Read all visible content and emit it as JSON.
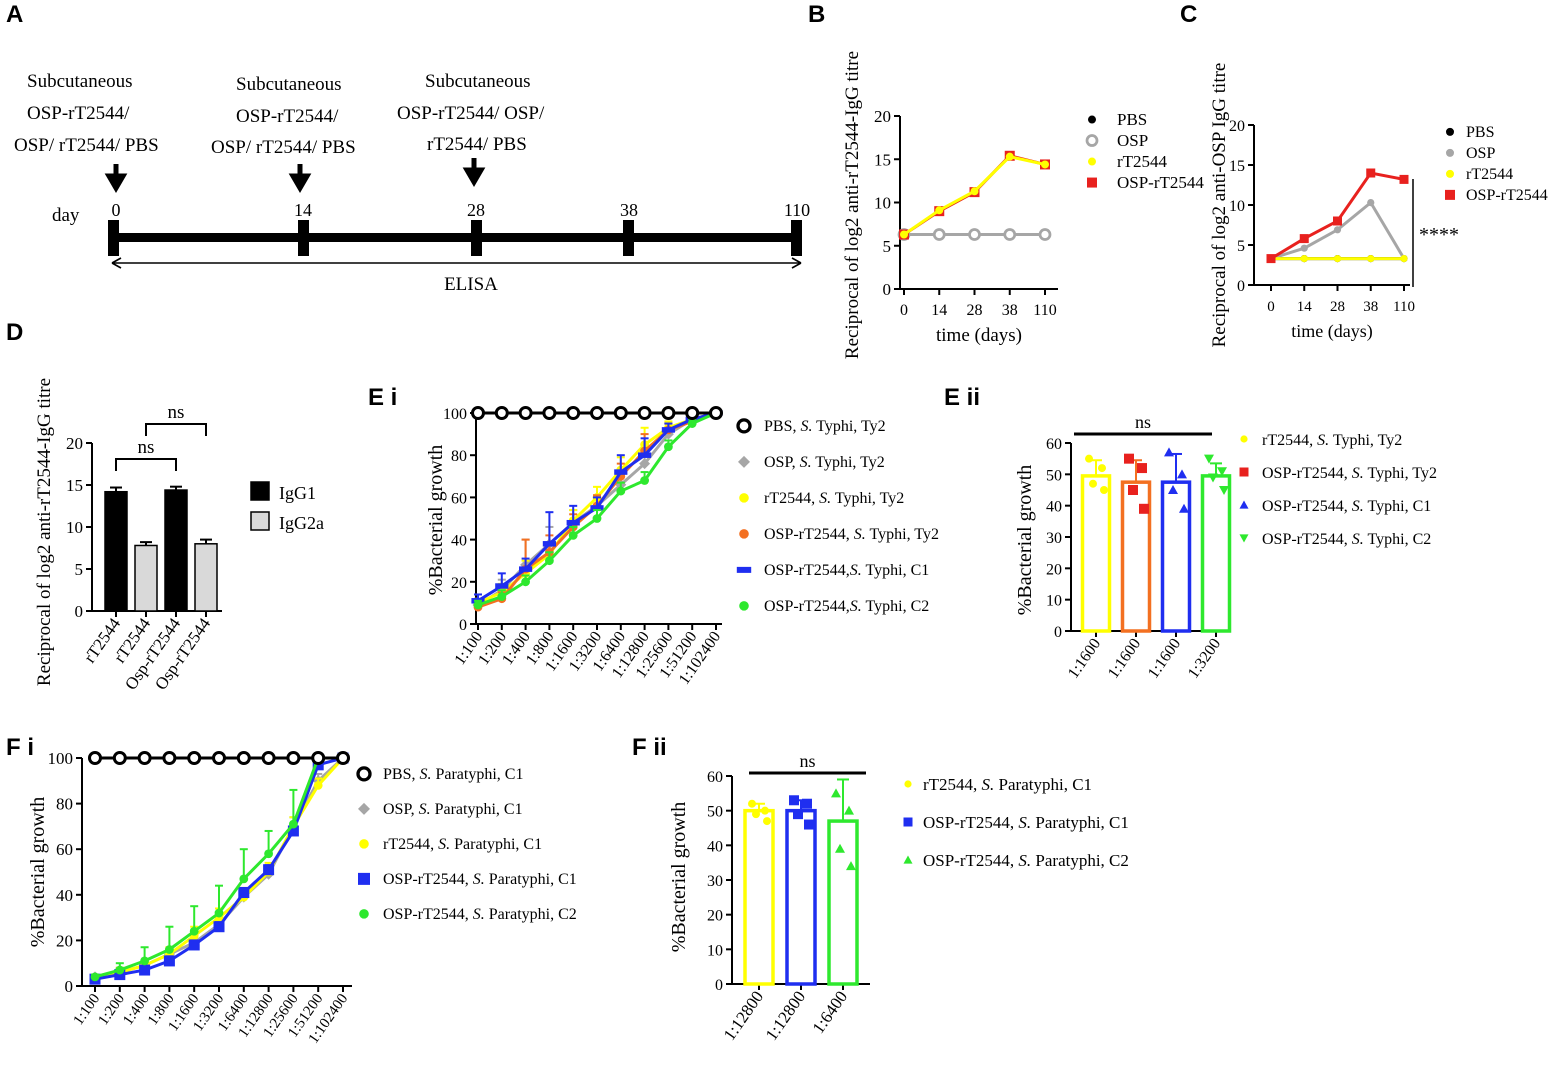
{
  "panel_labels": {
    "a": "A",
    "b": "B",
    "c": "C",
    "d": "D",
    "ei": "E i",
    "eii": "E ii",
    "fi": "F i",
    "fii": "F ii"
  },
  "colors": {
    "black": "#000000",
    "grey": "#a6a6a6",
    "yellow": "#ffff00",
    "red": "#e8211e",
    "orange": "#f37021",
    "blue": "#1f2ef0",
    "green": "#2ee82e",
    "lightgrey": "#d9d9d9"
  },
  "timeline": {
    "doses": [
      {
        "day": 0,
        "lines": [
          "Subcutaneous",
          "OSP-rT2544/",
          "OSP/ rT2544/ PBS"
        ]
      },
      {
        "day": 14,
        "lines": [
          "Subcutaneous",
          "OSP-rT2544/",
          "OSP/ rT2544/ PBS"
        ]
      },
      {
        "day": 28,
        "lines": [
          "Subcutaneous",
          "OSP-rT2544/ OSP/",
          "rT2544/ PBS"
        ]
      }
    ],
    "day_label": "day",
    "days": [
      "0",
      "14",
      "28",
      "38",
      "110"
    ],
    "elisa_label": "ELISA"
  },
  "chart_data": [
    {
      "id": "B",
      "type": "line",
      "xlabel": "time (days)",
      "ylabel": "Reciprocal of log2 anti-rT2544-IgG titre",
      "categories": [
        "0",
        "14",
        "28",
        "38",
        "110"
      ],
      "ylim": [
        0,
        20
      ],
      "yticks": [
        "0",
        "5",
        "10",
        "15",
        "20"
      ],
      "legend_position": "right",
      "series": [
        {
          "name": "PBS",
          "color": "black",
          "marker": "dot",
          "values": [
            6.3,
            6.3,
            6.3,
            6.3,
            6.3
          ]
        },
        {
          "name": "OSP",
          "color": "grey",
          "marker": "ring",
          "values": [
            6.3,
            6.3,
            6.3,
            6.3,
            6.3
          ]
        },
        {
          "name": "rT2544",
          "color": "yellow",
          "marker": "dot",
          "values": [
            6.3,
            9.1,
            11.3,
            15.3,
            14.4
          ]
        },
        {
          "name": "OSP-rT2544",
          "color": "red",
          "marker": "square",
          "values": [
            6.3,
            9.0,
            11.2,
            15.4,
            14.4
          ]
        }
      ]
    },
    {
      "id": "C",
      "type": "line",
      "xlabel": "time (days)",
      "ylabel": "Reciprocal of log2 anti-OSP IgG titre",
      "categories": [
        "0",
        "14",
        "28",
        "38",
        "110"
      ],
      "ylim": [
        0,
        20
      ],
      "yticks": [
        "0",
        "5",
        "10",
        "15",
        "20"
      ],
      "annotation": "****",
      "legend_position": "right",
      "series": [
        {
          "name": "PBS",
          "color": "black",
          "marker": "dot",
          "values": [
            3.3,
            3.3,
            3.3,
            3.3,
            3.3
          ]
        },
        {
          "name": "OSP",
          "color": "grey",
          "marker": "dot",
          "values": [
            3.3,
            4.6,
            6.9,
            10.3,
            3.3
          ]
        },
        {
          "name": "rT2544",
          "color": "yellow",
          "marker": "dot",
          "values": [
            3.3,
            3.3,
            3.3,
            3.3,
            3.3
          ]
        },
        {
          "name": "OSP-rT2544",
          "color": "red",
          "marker": "square",
          "values": [
            3.3,
            5.8,
            8.0,
            14.0,
            13.2
          ]
        }
      ]
    },
    {
      "id": "D",
      "type": "bar",
      "ylabel": "Reciprocal of log2 anti-rT2544-IgG titre",
      "categories": [
        "rT2544",
        "rT2544",
        "Osp-rT2544",
        "Osp-rT2544"
      ],
      "ylim": [
        0,
        20
      ],
      "yticks": [
        "0",
        "5",
        "10",
        "15",
        "20"
      ],
      "values": [
        14.2,
        7.8,
        14.4,
        8.0
      ],
      "errors": [
        0.5,
        0.4,
        0.4,
        0.5
      ],
      "bar_colors": [
        "black",
        "lightgrey",
        "black",
        "lightgrey"
      ],
      "legend": [
        {
          "name": "IgG1",
          "color": "black"
        },
        {
          "name": "IgG2a",
          "color": "lightgrey"
        }
      ],
      "comparisons": [
        {
          "a": 0,
          "b": 2,
          "label": "ns"
        },
        {
          "a": 1,
          "b": 3,
          "label": "ns"
        }
      ]
    },
    {
      "id": "E i",
      "type": "line",
      "ylabel": "%Bacterial growth",
      "categories": [
        "1:100",
        "1:200",
        "1:400",
        "1:800",
        "1:1600",
        "1:3200",
        "1:6400",
        "1:12800",
        "1:25600",
        "1:51200",
        "1:102400"
      ],
      "ylim": [
        0,
        100
      ],
      "yticks": [
        "0",
        "20",
        "40",
        "60",
        "80",
        "100"
      ],
      "legend_position": "right",
      "series": [
        {
          "name": "PBS, S. Typhi, Ty2",
          "color": "black",
          "marker": "ring",
          "values": [
            100,
            100,
            100,
            100,
            100,
            100,
            100,
            100,
            100,
            100,
            100
          ]
        },
        {
          "name": "OSP, S. Typhi, Ty2",
          "color": "grey",
          "marker": "diamond",
          "values": [
            9,
            16,
            28,
            38,
            48,
            56,
            66,
            76,
            90,
            97,
            100
          ],
          "errors": [
            3,
            5,
            12,
            8,
            6,
            5,
            5,
            5,
            3,
            2,
            0
          ]
        },
        {
          "name": "rT2544, S. Typhi, Ty2",
          "color": "yellow",
          "marker": "dot",
          "values": [
            10,
            15,
            24,
            33,
            49,
            60,
            73,
            85,
            93,
            97,
            100
          ],
          "errors": [
            4,
            4,
            6,
            5,
            5,
            5,
            6,
            8,
            3,
            2,
            0
          ]
        },
        {
          "name": "OSP-rT2544, S. Typhi, Ty2",
          "color": "orange",
          "marker": "dot",
          "values": [
            8,
            12,
            26,
            34,
            46,
            56,
            70,
            82,
            92,
            96,
            100
          ],
          "errors": [
            3,
            3,
            14,
            8,
            6,
            5,
            6,
            8,
            3,
            2,
            0
          ]
        },
        {
          "name": "OSP-rT2544,S. Typhi, C1",
          "color": "blue",
          "marker": "dash",
          "values": [
            11,
            18,
            26,
            38,
            48,
            55,
            72,
            80,
            92,
            97,
            100
          ],
          "errors": [
            3,
            6,
            5,
            15,
            8,
            5,
            8,
            8,
            3,
            2,
            0
          ]
        },
        {
          "name": "OSP-rT2544,S. Typhi,  C2",
          "color": "green",
          "marker": "dot",
          "values": [
            9,
            13,
            20,
            30,
            42,
            50,
            63,
            68,
            84,
            95,
            100
          ],
          "errors": [
            2,
            3,
            3,
            4,
            4,
            4,
            4,
            4,
            3,
            2,
            0
          ]
        }
      ]
    },
    {
      "id": "E ii",
      "type": "bar",
      "ylabel": "%Bacterial growth",
      "categories": [
        "1:1600",
        "1:1600",
        "1:1600",
        "1:3200"
      ],
      "ylim": [
        0,
        60
      ],
      "yticks": [
        "0",
        "10",
        "20",
        "30",
        "40",
        "50",
        "60"
      ],
      "values": [
        49.5,
        47.5,
        47.5,
        49.5
      ],
      "errors": [
        5,
        7,
        9,
        4
      ],
      "bar_colors": [
        "yellow",
        "orange",
        "blue",
        "green"
      ],
      "points": [
        [
          55,
          52,
          47,
          45
        ],
        [
          55,
          52,
          45,
          39
        ],
        [
          57,
          50,
          45,
          39
        ],
        [
          55,
          51,
          49,
          45
        ]
      ],
      "point_colors": [
        "yellow",
        "red",
        "blue",
        "green"
      ],
      "point_markers": [
        "dot",
        "square",
        "triangle",
        "triangle-down"
      ],
      "legend": [
        {
          "name": "rT2544, S. Typhi, Ty2",
          "color": "yellow",
          "marker": "dot"
        },
        {
          "name": "OSP-rT2544, S. Typhi, Ty2",
          "color": "red",
          "marker": "square"
        },
        {
          "name": "OSP-rT2544, S. Typhi, C1",
          "color": "blue",
          "marker": "triangle"
        },
        {
          "name": "OSP-rT2544, S. Typhi, C2",
          "color": "green",
          "marker": "triangle-down"
        }
      ],
      "significance": "ns"
    },
    {
      "id": "F i",
      "type": "line",
      "ylabel": "%Bacterial growth",
      "categories": [
        "1:100",
        "1:200",
        "1:400",
        "1:800",
        "1:1600",
        "1:3200",
        "1:6400",
        "1:12800",
        "1:25600",
        "1:51200",
        "1:102400"
      ],
      "ylim": [
        0,
        100
      ],
      "yticks": [
        "0",
        "20",
        "40",
        "60",
        "80",
        "100"
      ],
      "legend_position": "right",
      "series": [
        {
          "name": "PBS, S. Paratyphi, C1",
          "color": "black",
          "marker": "ring",
          "values": [
            100,
            100,
            100,
            100,
            100,
            100,
            100,
            100,
            100,
            100,
            100
          ]
        },
        {
          "name": "OSP, S. Paratyphi, C1",
          "color": "grey",
          "marker": "diamond",
          "values": [
            4,
            6,
            9,
            14,
            19,
            27,
            39,
            49,
            70,
            90,
            100
          ],
          "errors": [
            1,
            2,
            2,
            2,
            3,
            3,
            3,
            3,
            4,
            3,
            0
          ]
        },
        {
          "name": "rT2544, S. Paratyphi, C1",
          "color": "yellow",
          "marker": "dot",
          "values": [
            3,
            6,
            9,
            14,
            22,
            30,
            39,
            50,
            70,
            88,
            100
          ],
          "errors": [
            1,
            2,
            2,
            3,
            4,
            4,
            4,
            4,
            4,
            3,
            0
          ]
        },
        {
          "name": "OSP-rT2544, S. Paratyphi, C1",
          "color": "blue",
          "marker": "square",
          "values": [
            3,
            5,
            7,
            11,
            18,
            26,
            41,
            51,
            68,
            97,
            100
          ],
          "errors": [
            1,
            1,
            1,
            2,
            2,
            2,
            2,
            2,
            2,
            2,
            0
          ]
        },
        {
          "name": "OSP-rT2544, S. Paratyphi, C2",
          "color": "green",
          "marker": "dot",
          "values": [
            4,
            7,
            11,
            16,
            24,
            32,
            47,
            58,
            71,
            100,
            100
          ],
          "errors": [
            1,
            3,
            6,
            10,
            11,
            12,
            13,
            10,
            15,
            0,
            0
          ]
        }
      ]
    },
    {
      "id": "F ii",
      "type": "bar",
      "ylabel": "%Bacterial growth",
      "categories": [
        "1:12800",
        "1:12800",
        "1:6400"
      ],
      "ylim": [
        0,
        60
      ],
      "yticks": [
        "0",
        "10",
        "20",
        "30",
        "40",
        "50",
        "60"
      ],
      "values": [
        50,
        50,
        47
      ],
      "errors": [
        2,
        3,
        12
      ],
      "bar_colors": [
        "yellow",
        "blue",
        "green"
      ],
      "points": [
        [
          52,
          50,
          49,
          47
        ],
        [
          53,
          52,
          49,
          46
        ],
        [
          55,
          50,
          39,
          34
        ]
      ],
      "point_colors": [
        "yellow",
        "blue",
        "green"
      ],
      "point_markers": [
        "dot",
        "square",
        "triangle"
      ],
      "legend": [
        {
          "name": "rT2544, S. Paratyphi, C1",
          "color": "yellow",
          "marker": "dot"
        },
        {
          "name": "OSP-rT2544, S. Paratyphi, C1",
          "color": "blue",
          "marker": "square"
        },
        {
          "name": "OSP-rT2544, S. Paratyphi, C2",
          "color": "green",
          "marker": "triangle"
        }
      ],
      "significance": "ns"
    }
  ]
}
